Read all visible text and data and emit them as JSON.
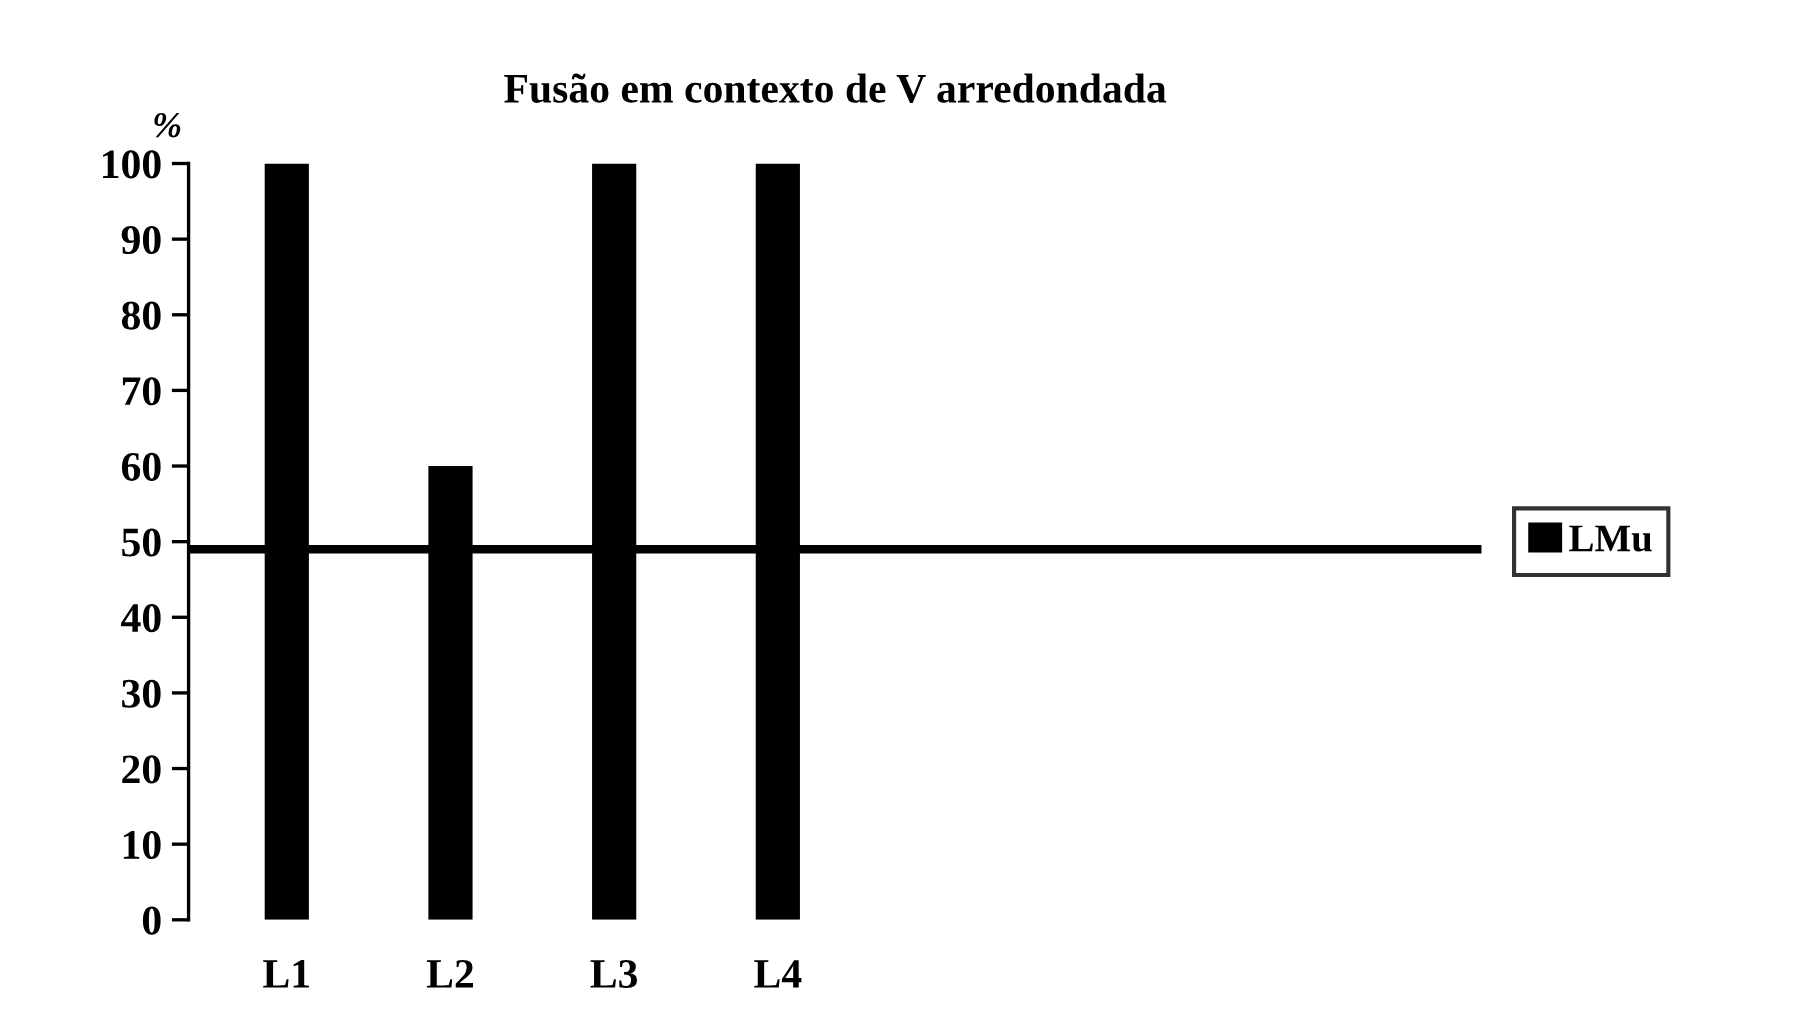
{
  "chart_data": {
    "type": "bar",
    "title": "Fusão em contexto de V arredondada",
    "ylabel": "%",
    "categories": [
      "L1",
      "L2",
      "L3",
      "L4"
    ],
    "series": [
      {
        "name": "LMu",
        "color": "#000000",
        "values": [
          100,
          60,
          100,
          100
        ]
      }
    ],
    "ylim": [
      0,
      100
    ],
    "yticks": [
      0,
      10,
      20,
      30,
      40,
      50,
      60,
      70,
      80,
      90,
      100
    ],
    "ref_lines": [
      {
        "axis": "y",
        "value": 49,
        "color": "#000000",
        "line_style": "solid"
      }
    ],
    "grid": false,
    "legend": "right"
  }
}
